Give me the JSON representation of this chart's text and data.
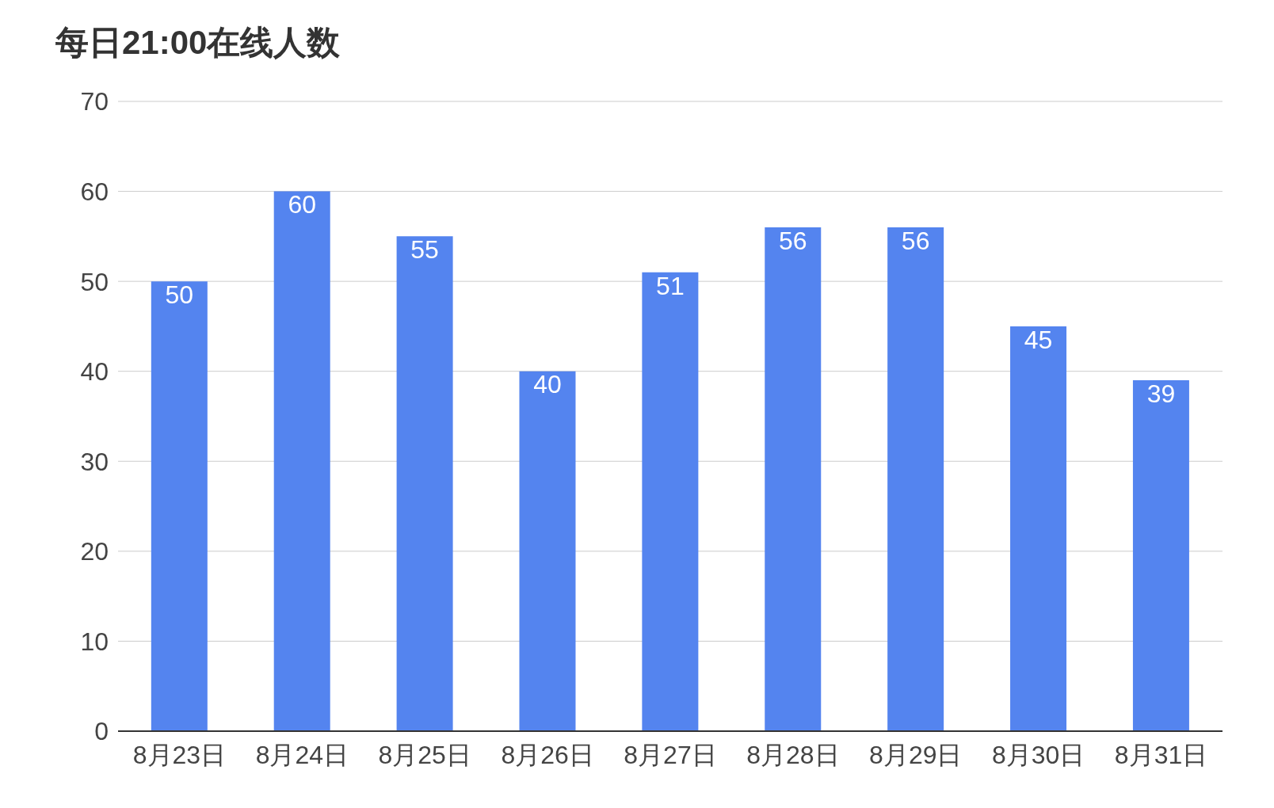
{
  "chart_data": {
    "type": "bar",
    "title": "每日21:00在线人数",
    "categories": [
      "8月23日",
      "8月24日",
      "8月25日",
      "8月26日",
      "8月27日",
      "8月28日",
      "8月29日",
      "8月30日",
      "8月31日"
    ],
    "values": [
      50,
      60,
      55,
      40,
      51,
      56,
      56,
      45,
      39
    ],
    "color": "#5484ef",
    "ylim": [
      0,
      70
    ],
    "yticks": [
      0,
      10,
      20,
      30,
      40,
      50,
      60,
      70
    ],
    "grid": "y",
    "legend": false,
    "data_labels": true
  }
}
